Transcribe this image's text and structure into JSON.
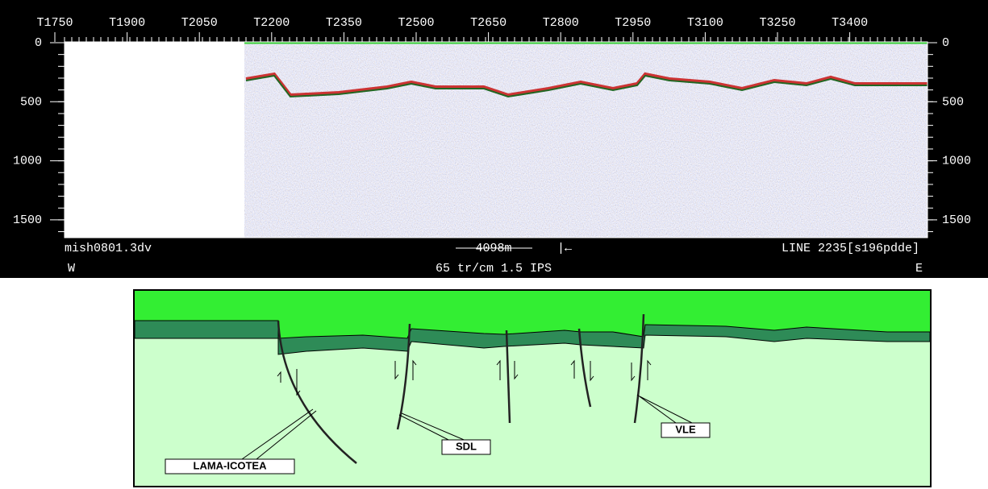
{
  "seismic": {
    "trace_labels": [
      "T1750",
      "T1900",
      "T2050",
      "T2200",
      "T2350",
      "T2500",
      "T2650",
      "T2800",
      "T2950",
      "T3100",
      "T3250",
      "T3400"
    ],
    "time_ticks": [
      "0",
      "500",
      "1000",
      "1500"
    ],
    "file": "mish0801.3dv",
    "scale_bar": "4098m",
    "line": "LINE 2235[s196pdde]",
    "west": "W",
    "east": "E",
    "display": "65 tr/cm 1.5 IPS"
  },
  "interpretation": {
    "faults": [
      "LAMA-ICOTEA",
      "SDL",
      "VLE"
    ]
  }
}
